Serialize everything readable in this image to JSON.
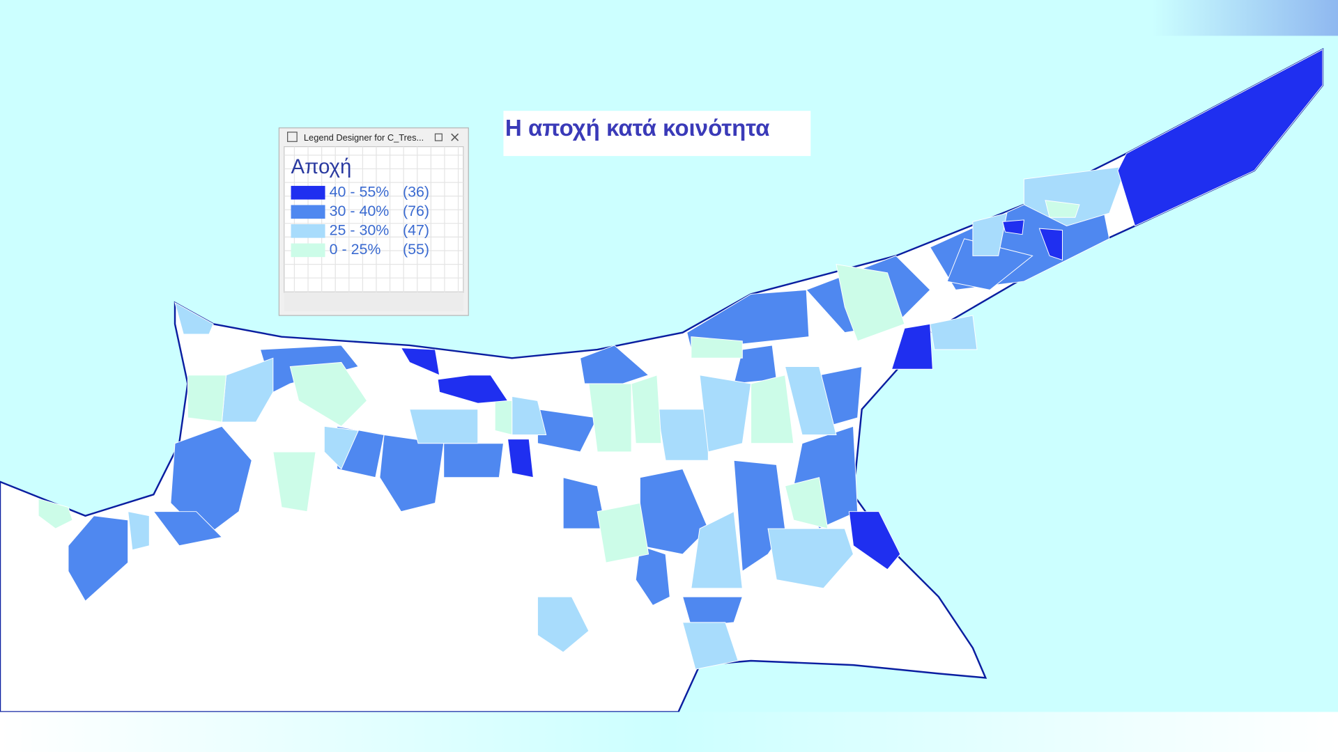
{
  "title": "Η αποχή κατά κοινότητα",
  "legend_window": {
    "title": "Legend Designer for C_Tres..."
  },
  "legend": {
    "heading": "Αποχή",
    "items": [
      {
        "label": "40 - 55%",
        "count": "(36)",
        "color": "#1f2ff0"
      },
      {
        "label": "30 - 40%",
        "count": "(76)",
        "color": "#4f88f0"
      },
      {
        "label": "25 - 30%",
        "count": "(47)",
        "color": "#a8dcfc"
      },
      {
        "label": "0 - 25%",
        "count": "(55)",
        "color": "#ccfce8"
      }
    ]
  }
}
